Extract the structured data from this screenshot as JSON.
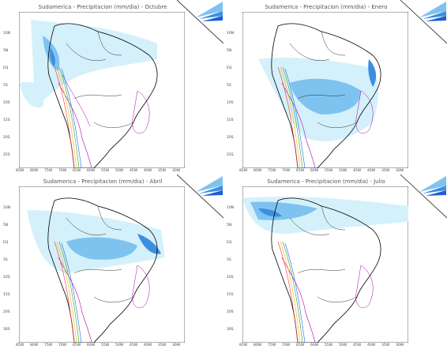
{
  "panels": [
    {
      "title": "Sudamerica - Precipitacion (mm/dia) - Octubre"
    },
    {
      "title": "Sudamerica - Precipitacion (mm/dia) - Enero"
    },
    {
      "title": "Sudamerica - Precipitacion (mm/dia) - Abril"
    },
    {
      "title": "Sudamerica - Precipitacion (mm/dia) - Julio"
    }
  ],
  "lat_labels": [
    "10N",
    "5N",
    "EQ",
    "5S",
    "10S",
    "15S",
    "20S",
    "25S",
    "30S"
  ],
  "lon_labels": [
    "85W",
    "80W",
    "75W",
    "70W",
    "65W",
    "60W",
    "55W",
    "50W",
    "45W",
    "40W",
    "35W",
    "30W"
  ],
  "colors": {
    "land_line": "#000000",
    "light_blue": "#d4f1fb",
    "mid_blue": "#7ec3f0",
    "dark_blue": "#3e8ee0",
    "contour_purple": "#b100b1"
  }
}
